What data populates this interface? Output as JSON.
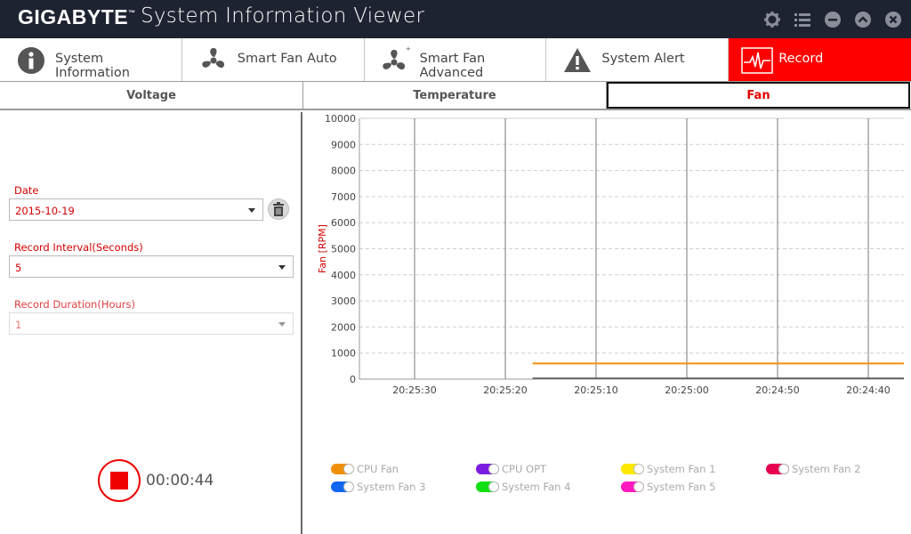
{
  "app": {
    "brand": "GIGABYTE",
    "brand_mark": "™",
    "title": "System Information Viewer"
  },
  "titlebar_icons": [
    "gear-icon",
    "list-icon",
    "minimize-icon",
    "collapse-icon",
    "close-icon"
  ],
  "tabs": [
    {
      "label": "System Information",
      "icon": "info-icon",
      "active": false
    },
    {
      "label": "Smart Fan Auto",
      "icon": "fan-icon",
      "active": false
    },
    {
      "label": "Smart Fan Advanced",
      "icon": "fan-plus-icon",
      "active": false
    },
    {
      "label": "System Alert",
      "icon": "warning-icon",
      "active": false
    },
    {
      "label": "Record",
      "icon": "heartbeat-icon",
      "active": true
    }
  ],
  "subtabs": [
    {
      "label": "Voltage",
      "active": false
    },
    {
      "label": "Temperature",
      "active": false
    },
    {
      "label": "Fan",
      "active": true
    }
  ],
  "form": {
    "date_label": "Date",
    "date_value": "2015-10-19",
    "interval_label": "Record Interval(Seconds)",
    "interval_value": "5",
    "duration_label": "Record Duration(Hours)",
    "duration_value": "1"
  },
  "recording": {
    "elapsed": "00:00:44"
  },
  "colors": {
    "accent": "#ff0000",
    "titlebar": "#1e2331",
    "label_red": "#d40000"
  },
  "chart_data": {
    "type": "line",
    "ylabel": "Fan [RPM]",
    "ylim": [
      0,
      10000
    ],
    "yticks": [
      "0",
      "1000",
      "2000",
      "3000",
      "4000",
      "5000",
      "6000",
      "7000",
      "8000",
      "9000",
      "10000"
    ],
    "xticks": [
      "20:25:30",
      "20:25:20",
      "20:25:10",
      "20:25:00",
      "20:24:50",
      "20:24:40"
    ],
    "series": [
      {
        "name": "CPU Fan",
        "color": "#f0900a",
        "values": [
          {
            "x": "20:25:17",
            "y": 600
          },
          {
            "x": "20:24:35",
            "y": 600
          }
        ]
      }
    ],
    "grid": true
  },
  "legend": [
    {
      "name": "CPU Fan",
      "color": "#f0900a"
    },
    {
      "name": "CPU OPT",
      "color": "#7a1de0"
    },
    {
      "name": "System Fan 1",
      "color": "#ffe800"
    },
    {
      "name": "System Fan 2",
      "color": "#e8004e"
    },
    {
      "name": "System Fan 3",
      "color": "#1267f0"
    },
    {
      "name": "System Fan 4",
      "color": "#12e012"
    },
    {
      "name": "System Fan 5",
      "color": "#ff18c0"
    }
  ]
}
